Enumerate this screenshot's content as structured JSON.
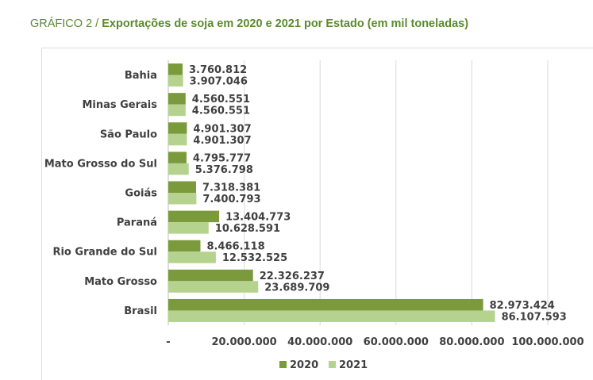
{
  "title": {
    "prefix": "GRÁFICO 2 / ",
    "main": "Exportações de soja em 2020 e 2021 por Estado (em mil toneladas)"
  },
  "colors": {
    "series_2020": "#7a9a3c",
    "series_2021": "#b5d38e",
    "grid": "#d9d9d9",
    "text": "#404040",
    "title": "#5b8a2d"
  },
  "chart_data": {
    "type": "bar",
    "orientation": "horizontal",
    "categories": [
      "Bahia",
      "Minas Gerais",
      "São Paulo",
      "Mato Grosso do Sul",
      "Goiás",
      "Paraná",
      "Rio Grande do Sul",
      "Mato Grosso",
      "Brasil"
    ],
    "series": [
      {
        "name": "2020",
        "values": [
          3760812,
          4560551,
          4901307,
          4795777,
          7318381,
          13404773,
          8466118,
          22326237,
          82973424
        ],
        "labels": [
          "3.760.812",
          "4.560.551",
          "4.901.307",
          "4.795.777",
          "7.318.381",
          "13.404.773",
          "8.466.118",
          "22.326.237",
          "82.973.424"
        ]
      },
      {
        "name": "2021",
        "values": [
          3907046,
          4560551,
          4901307,
          5376798,
          7400793,
          10628591,
          12532525,
          23689709,
          86107593
        ],
        "labels": [
          "3.907.046",
          "4.560.551",
          "4.901.307",
          "5.376.798",
          "7.400.793",
          "10.628.591",
          "12.532.525",
          "23.689.709",
          "86.107.593"
        ]
      }
    ],
    "xlim": [
      0,
      100000000
    ],
    "xticks": [
      0,
      20000000,
      40000000,
      60000000,
      80000000,
      100000000
    ],
    "xtick_labels": [
      "-",
      "20.000.000",
      "40.000.000",
      "60.000.000",
      "80.000.000",
      "100.000.000"
    ],
    "grid": true,
    "legend_position": "bottom"
  }
}
